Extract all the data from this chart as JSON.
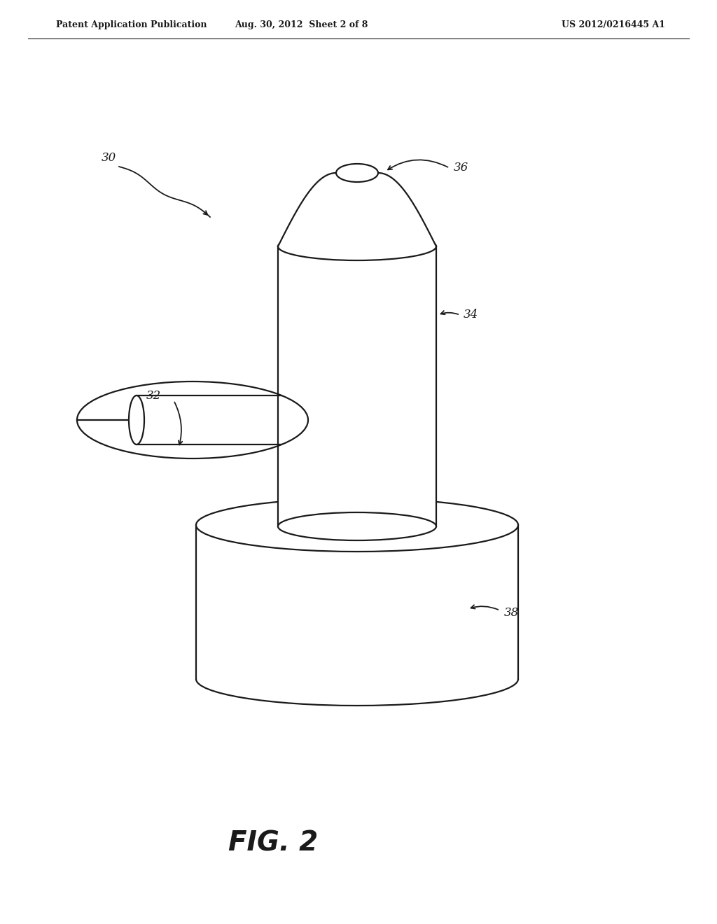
{
  "header_left": "Patent Application Publication",
  "header_center": "Aug. 30, 2012  Sheet 2 of 8",
  "header_right": "US 2012/0216445 A1",
  "fig_caption": "FIG. 2",
  "bg_color": "#ffffff",
  "line_color": "#1a1a1a",
  "line_width": 1.6,
  "page_width": 10.24,
  "page_height": 13.2
}
